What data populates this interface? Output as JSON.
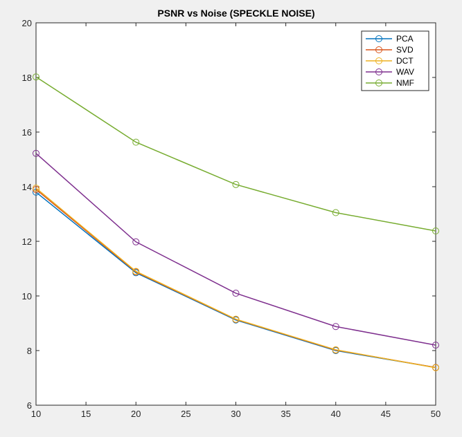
{
  "chart_data": {
    "type": "line",
    "title": "PSNR vs Noise (SPECKLE NOISE)",
    "xlabel": "",
    "ylabel": "",
    "x": [
      10,
      20,
      30,
      40,
      50
    ],
    "xlim": [
      10,
      50
    ],
    "ylim": [
      6,
      20
    ],
    "xticks": [
      10,
      15,
      20,
      25,
      30,
      35,
      40,
      45,
      50
    ],
    "yticks": [
      6,
      8,
      10,
      12,
      14,
      16,
      18,
      20
    ],
    "grid": false,
    "legend_position": "top-right",
    "marker": "circle",
    "series": [
      {
        "name": "PCA",
        "color": "#0072BD",
        "values": [
          13.8,
          10.85,
          9.12,
          8.0,
          7.38
        ]
      },
      {
        "name": "SVD",
        "color": "#D95319",
        "values": [
          13.9,
          10.88,
          9.14,
          8.02,
          7.38
        ]
      },
      {
        "name": "DCT",
        "color": "#EDB120",
        "values": [
          13.95,
          10.9,
          9.15,
          8.03,
          7.37
        ]
      },
      {
        "name": "WAV",
        "color": "#7E2F8E",
        "values": [
          15.22,
          11.98,
          10.1,
          8.88,
          8.2
        ]
      },
      {
        "name": "NMF",
        "color": "#77AC30",
        "values": [
          18.02,
          15.63,
          14.08,
          13.05,
          12.38
        ]
      }
    ]
  }
}
